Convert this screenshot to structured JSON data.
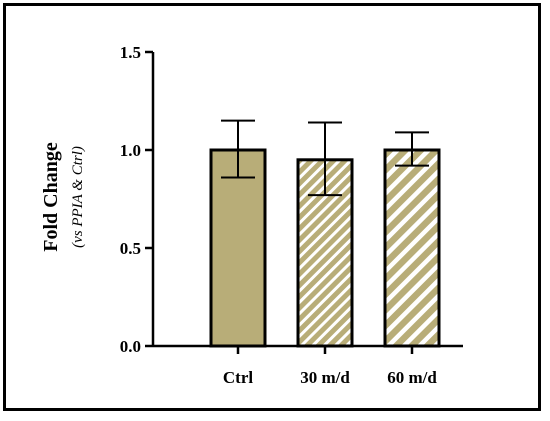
{
  "chart_data": {
    "type": "bar",
    "categories": [
      "Ctrl",
      "30 m/d",
      "60 m/d"
    ],
    "values": [
      1.0,
      0.95,
      1.0
    ],
    "error_upper": [
      1.15,
      1.14,
      1.09
    ],
    "error_lower": [
      0.86,
      0.77,
      0.92
    ],
    "patterns": [
      "solid",
      "diagonal-stripes-fine",
      "diagonal-stripes-wide"
    ],
    "ylabel": "Fold Change",
    "ylabel_sub": "(vs PPIA & Ctrl)",
    "xlabel": "",
    "title": "",
    "ylim": [
      0,
      1.5
    ],
    "yticks": [
      "0.0",
      "0.5",
      "1.0",
      "1.5"
    ],
    "grid": false,
    "colors": {
      "bar_fill": "#b8ad78",
      "outline": "#000000",
      "stripe": "#ffffff"
    }
  }
}
